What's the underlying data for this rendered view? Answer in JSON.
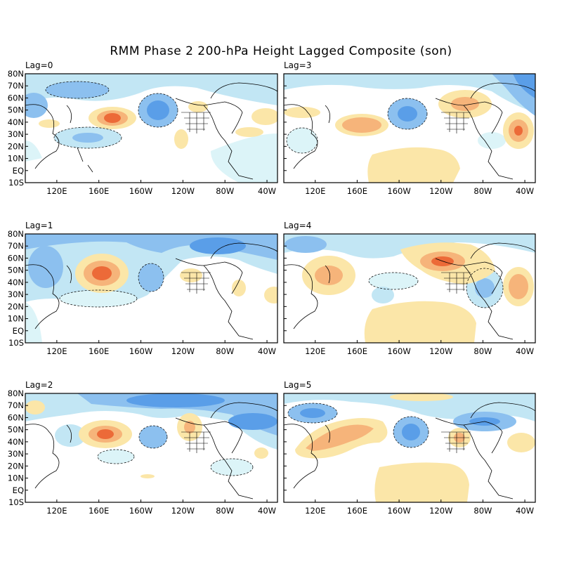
{
  "title": "RMM Phase 2 200-hPa Height Lagged Composite (son)",
  "lat_labels": [
    "80N",
    "70N",
    "60N",
    "50N",
    "40N",
    "30N",
    "20N",
    "10N",
    "EQ",
    "10S"
  ],
  "lon_labels": [
    "120E",
    "160E",
    "160W",
    "120W",
    "80W",
    "40W"
  ],
  "colors": {
    "neg3": "#5a9ee8",
    "neg2": "#8cc0ef",
    "neg1": "#c2e6f4",
    "neg0": "#dcf4f8",
    "pos1": "#fbe6a8",
    "pos2": "#f6b47a",
    "pos3": "#ec6a38",
    "land": "#000000",
    "frame": "#000000"
  },
  "panels": [
    {
      "id": "lag0",
      "label": "Lag=0"
    },
    {
      "id": "lag3",
      "label": "Lag=3"
    },
    {
      "id": "lag1",
      "label": "Lag=1"
    },
    {
      "id": "lag4",
      "label": "Lag=4"
    },
    {
      "id": "lag2",
      "label": "Lag=2"
    },
    {
      "id": "lag5",
      "label": "Lag=5"
    }
  ]
}
